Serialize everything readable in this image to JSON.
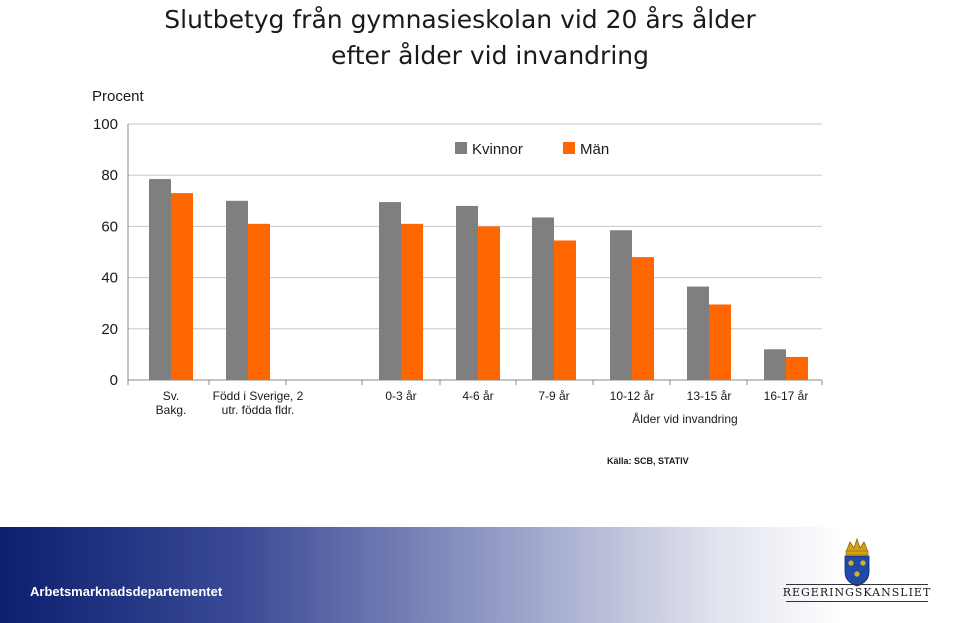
{
  "title": {
    "line1": "Slutbetyg från gymnasieskolan vid 20 års ålder",
    "line2": "efter ålder vid invandring"
  },
  "footer": {
    "department": "Arbetsmarknadsdepartementet",
    "logo_text": "REGERINGSKANSLIET"
  },
  "colors": {
    "kvinnor": "#7f7f7f",
    "man": "#ff6600",
    "footer_start": "#0c1f6e"
  },
  "chart_data": {
    "type": "bar",
    "ylabel": "Procent",
    "xlabel": "Ålder vid invandring",
    "ylim": [
      0,
      100
    ],
    "yticks": [
      0,
      20,
      40,
      60,
      80,
      100
    ],
    "grid": true,
    "legend_position": "top-right",
    "source": "Källa: SCB, STATIV",
    "categories": [
      [
        "Sv.",
        "Bakg."
      ],
      [
        "Född i Sverige, 2",
        "utr. födda fldr."
      ],
      [
        "0-3 år"
      ],
      [
        "4-6 år"
      ],
      [
        "7-9 år"
      ],
      [
        "10-12 år"
      ],
      [
        "13-15 år"
      ],
      [
        "16-17 år"
      ]
    ],
    "series": [
      {
        "name": "Kvinnor",
        "values": [
          78.5,
          70,
          69.5,
          68,
          63.5,
          58.5,
          36.5,
          12
        ]
      },
      {
        "name": "Män",
        "values": [
          73,
          61,
          61,
          60,
          54.5,
          48,
          29.5,
          9
        ]
      }
    ]
  }
}
